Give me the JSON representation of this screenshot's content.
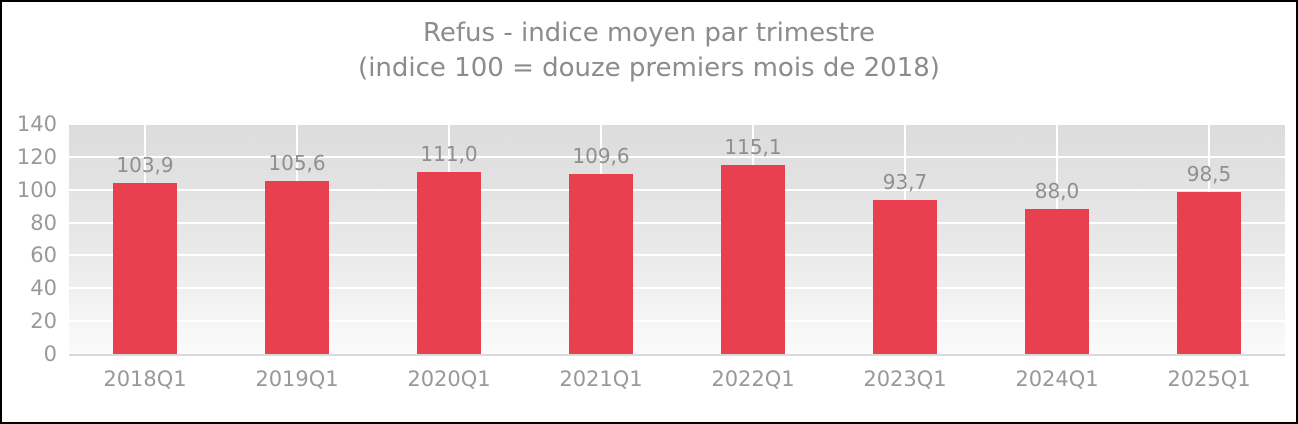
{
  "chart_data": {
    "type": "bar",
    "title": "Refus - indice moyen par trimestre",
    "subtitle": "(indice 100 = douze premiers mois de 2018)",
    "categories": [
      "2018Q1",
      "2019Q1",
      "2020Q1",
      "2021Q1",
      "2022Q1",
      "2023Q1",
      "2024Q1",
      "2025Q1"
    ],
    "values": [
      103.9,
      105.6,
      111.0,
      109.6,
      115.1,
      93.7,
      88.0,
      98.5
    ],
    "value_labels": [
      "103,9",
      "105,6",
      "111,0",
      "109,6",
      "115,1",
      "93,7",
      "88,0",
      "98,5"
    ],
    "y_ticks": [
      0,
      20,
      40,
      60,
      80,
      100,
      120,
      140
    ],
    "ylim": [
      0,
      140
    ],
    "xlabel": "",
    "ylabel": "",
    "legend": "none",
    "grid": "on",
    "bar_color": "#e8404e",
    "label_color": "#8f8f8f",
    "axis_text_color": "#999999",
    "title_color": "#8c8c8c",
    "gridline_color": "#ffffff"
  }
}
